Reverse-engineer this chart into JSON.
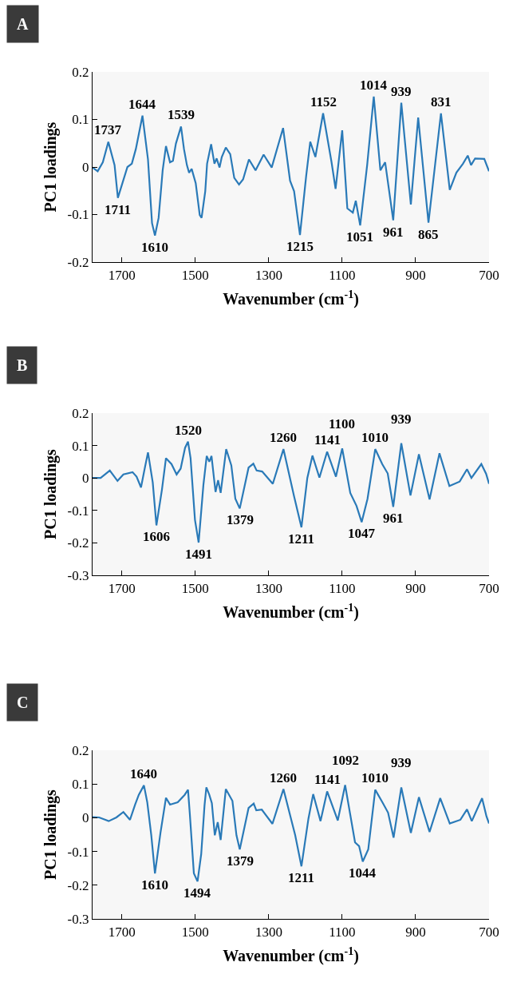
{
  "chart_data": [
    {
      "type": "line",
      "title": "A",
      "xlabel": "Wavenumber (cm$^{-1}$)",
      "ylabel": "PC1 loadings",
      "xlim": [
        1780,
        700
      ],
      "ylim": [
        -0.2,
        0.2
      ],
      "xticks": [
        1700,
        1500,
        1300,
        1100,
        900,
        700
      ],
      "yticks": [
        -0.2,
        -0.1,
        0,
        0.1,
        0.2
      ],
      "grid": false,
      "series": [
        {
          "color": "#2a7ab8",
          "x": [
            1780,
            1766,
            1752,
            1737,
            1720,
            1711,
            1685,
            1673,
            1662,
            1644,
            1629,
            1618,
            1610,
            1600,
            1589,
            1580,
            1569,
            1561,
            1553,
            1539,
            1531,
            1523,
            1517,
            1510,
            1499,
            1488,
            1483,
            1473,
            1468,
            1457,
            1448,
            1442,
            1434,
            1428,
            1417,
            1405,
            1394,
            1381,
            1370,
            1354,
            1336,
            1314,
            1292,
            1261,
            1242,
            1231,
            1215,
            1198,
            1187,
            1173,
            1152,
            1129,
            1118,
            1100,
            1086,
            1071,
            1063,
            1051,
            1032,
            1014,
            996,
            983,
            961,
            939,
            913,
            893,
            865,
            831,
            807,
            789,
            771,
            758,
            749,
            738,
            713,
            700
          ],
          "values": [
            -0.001,
            -0.009,
            0.01,
            0.053,
            0.004,
            -0.065,
            0,
            0.007,
            0.038,
            0.108,
            0.016,
            -0.118,
            -0.144,
            -0.107,
            -0.007,
            0.044,
            0.01,
            0.013,
            0.049,
            0.085,
            0.038,
            0.004,
            -0.012,
            -0.004,
            -0.034,
            -0.101,
            -0.107,
            -0.051,
            0.007,
            0.048,
            0.007,
            0.018,
            -0.001,
            0.021,
            0.041,
            0.027,
            -0.023,
            -0.037,
            -0.026,
            0.016,
            -0.007,
            0.026,
            -0.001,
            0.082,
            -0.029,
            -0.051,
            -0.143,
            -0.018,
            0.053,
            0.021,
            0.113,
            0.01,
            -0.046,
            0.077,
            -0.087,
            -0.096,
            -0.071,
            -0.123,
            0.004,
            0.148,
            -0.007,
            0.01,
            -0.112,
            0.135,
            -0.079,
            0.104,
            -0.117,
            0.113,
            -0.048,
            -0.012,
            0.007,
            0.024,
            0.004,
            0.018,
            0.017,
            -0.009
          ]
        }
      ],
      "annotations": [
        {
          "text": "1737",
          "x": 1737,
          "y": 0.053
        },
        {
          "text": "1644",
          "x": 1644,
          "y": 0.108
        },
        {
          "text": "1539",
          "x": 1539,
          "y": 0.085
        },
        {
          "text": "1152",
          "x": 1152,
          "y": 0.113
        },
        {
          "text": "1014",
          "x": 1014,
          "y": 0.148
        },
        {
          "text": "939",
          "x": 939,
          "y": 0.135
        },
        {
          "text": "831",
          "x": 831,
          "y": 0.113
        },
        {
          "text": "1711",
          "x": 1711,
          "y": -0.065
        },
        {
          "text": "1610",
          "x": 1610,
          "y": -0.144
        },
        {
          "text": "1215",
          "x": 1215,
          "y": -0.143
        },
        {
          "text": "1051",
          "x": 1051,
          "y": -0.123
        },
        {
          "text": "961",
          "x": 961,
          "y": -0.112
        },
        {
          "text": "865",
          "x": 865,
          "y": -0.117
        }
      ]
    },
    {
      "type": "line",
      "title": "B",
      "xlabel": "Wavenumber (cm$^{-1}$)",
      "ylabel": "PC1 loadings",
      "xlim": [
        1780,
        700
      ],
      "ylim": [
        -0.3,
        0.2
      ],
      "xticks": [
        1700,
        1500,
        1300,
        1100,
        900,
        700
      ],
      "yticks": [
        -0.3,
        -0.2,
        -0.1,
        0,
        0.1,
        0.2
      ],
      "grid": false,
      "series": [
        {
          "color": "#2a7ab8",
          "x": [
            1780,
            1758,
            1733,
            1712,
            1696,
            1671,
            1660,
            1648,
            1638,
            1629,
            1616,
            1606,
            1591,
            1580,
            1565,
            1551,
            1540,
            1528,
            1520,
            1513,
            1501,
            1491,
            1478,
            1469,
            1462,
            1456,
            1445,
            1438,
            1431,
            1416,
            1402,
            1391,
            1379,
            1355,
            1342,
            1333,
            1318,
            1289,
            1260,
            1231,
            1211,
            1195,
            1181,
            1162,
            1141,
            1117,
            1100,
            1078,
            1061,
            1047,
            1031,
            1010,
            991,
            976,
            961,
            939,
            914,
            891,
            862,
            835,
            808,
            780,
            760,
            748,
            721,
            708,
            700
          ],
          "values": [
            0,
            0,
            0.023,
            -0.009,
            0.011,
            0.018,
            0.004,
            -0.029,
            0.029,
            0.079,
            -0.014,
            -0.146,
            -0.036,
            0.061,
            0.043,
            0.011,
            0.029,
            0.093,
            0.112,
            0.061,
            -0.129,
            -0.199,
            -0.021,
            0.068,
            0.05,
            0.068,
            -0.043,
            -0.007,
            -0.046,
            0.089,
            0.039,
            -0.064,
            -0.094,
            0.032,
            0.044,
            0.023,
            0.02,
            -0.018,
            0.089,
            -0.057,
            -0.152,
            0,
            0.069,
            0.001,
            0.081,
            0.004,
            0.091,
            -0.046,
            -0.086,
            -0.136,
            -0.064,
            0.089,
            0.043,
            0.014,
            -0.089,
            0.107,
            -0.054,
            0.073,
            -0.066,
            0.076,
            -0.025,
            -0.011,
            0.027,
            0,
            0.043,
            0.013,
            -0.018
          ]
        }
      ],
      "annotations": [
        {
          "text": "1520",
          "x": 1520,
          "y": 0.112
        },
        {
          "text": "1260",
          "x": 1260,
          "y": 0.089
        },
        {
          "text": "1141",
          "x": 1141,
          "y": 0.081
        },
        {
          "text": "1100",
          "x": 1100,
          "y": 0.091
        },
        {
          "text": "1010",
          "x": 1010,
          "y": 0.089
        },
        {
          "text": "939",
          "x": 939,
          "y": 0.107
        },
        {
          "text": "1606",
          "x": 1606,
          "y": -0.146
        },
        {
          "text": "1491",
          "x": 1491,
          "y": -0.199
        },
        {
          "text": "1379",
          "x": 1379,
          "y": -0.094
        },
        {
          "text": "1211",
          "x": 1211,
          "y": -0.152
        },
        {
          "text": "1047",
          "x": 1047,
          "y": -0.136
        },
        {
          "text": "961",
          "x": 961,
          "y": -0.089
        }
      ]
    },
    {
      "type": "line",
      "title": "C",
      "xlabel": "Wavenumber (cm$^{-1}$)",
      "ylabel": "PC1 loadings",
      "xlim": [
        1780,
        700
      ],
      "ylim": [
        -0.3,
        0.2
      ],
      "xticks": [
        1700,
        1500,
        1300,
        1100,
        900,
        700
      ],
      "yticks": [
        -0.3,
        -0.2,
        -0.1,
        0,
        0.1,
        0.2
      ],
      "grid": false,
      "series": [
        {
          "color": "#2a7ab8",
          "x": [
            1780,
            1762,
            1736,
            1715,
            1696,
            1678,
            1664,
            1654,
            1640,
            1631,
            1620,
            1610,
            1595,
            1580,
            1569,
            1548,
            1529,
            1520,
            1515,
            1504,
            1494,
            1484,
            1475,
            1470,
            1462,
            1455,
            1447,
            1439,
            1431,
            1417,
            1399,
            1388,
            1379,
            1355,
            1341,
            1334,
            1319,
            1290,
            1260,
            1228,
            1211,
            1192,
            1179,
            1159,
            1141,
            1112,
            1092,
            1065,
            1054,
            1044,
            1029,
            1010,
            989,
            975,
            960,
            939,
            913,
            891,
            862,
            833,
            807,
            778,
            760,
            747,
            719,
            707,
            700
          ],
          "values": [
            0.002,
            0.001,
            -0.01,
            0.001,
            0.017,
            -0.006,
            0.039,
            0.068,
            0.096,
            0.046,
            -0.052,
            -0.165,
            -0.045,
            0.059,
            0.039,
            0.046,
            0.068,
            0.083,
            0.011,
            -0.165,
            -0.189,
            -0.108,
            0.036,
            0.09,
            0.068,
            0.043,
            -0.052,
            -0.013,
            -0.066,
            0.085,
            0.05,
            -0.052,
            -0.094,
            0.029,
            0.042,
            0.022,
            0.024,
            -0.018,
            0.085,
            -0.052,
            -0.144,
            -0.003,
            0.07,
            -0.01,
            0.078,
            -0.008,
            0.097,
            -0.073,
            -0.084,
            -0.13,
            -0.094,
            0.083,
            0.043,
            0.015,
            -0.059,
            0.09,
            -0.045,
            0.061,
            -0.042,
            0.058,
            -0.017,
            -0.006,
            0.025,
            -0.01,
            0.058,
            0.004,
            -0.017
          ]
        }
      ],
      "annotations": [
        {
          "text": "1640",
          "x": 1640,
          "y": 0.096
        },
        {
          "text": "1260",
          "x": 1260,
          "y": 0.085
        },
        {
          "text": "1141",
          "x": 1141,
          "y": 0.078
        },
        {
          "text": "1092",
          "x": 1092,
          "y": 0.097
        },
        {
          "text": "1010",
          "x": 1010,
          "y": 0.083
        },
        {
          "text": "939",
          "x": 939,
          "y": 0.09
        },
        {
          "text": "1610",
          "x": 1610,
          "y": -0.165
        },
        {
          "text": "1494",
          "x": 1494,
          "y": -0.189
        },
        {
          "text": "1379",
          "x": 1379,
          "y": -0.094
        },
        {
          "text": "1211",
          "x": 1211,
          "y": -0.144
        },
        {
          "text": "1044",
          "x": 1044,
          "y": -0.13
        }
      ]
    }
  ]
}
